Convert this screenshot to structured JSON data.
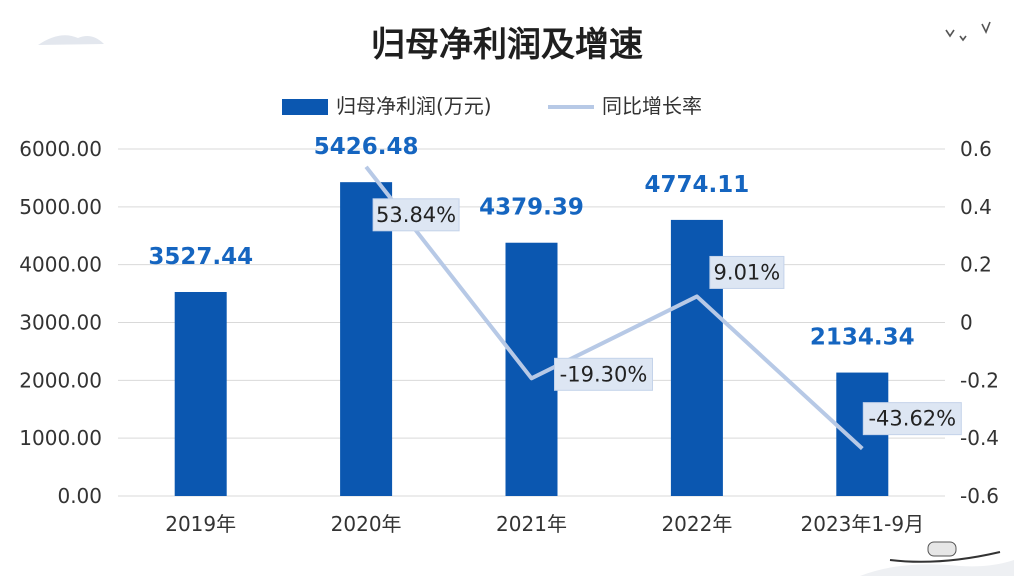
{
  "chart_data": {
    "type": "bar",
    "title": "归母净利润及增速",
    "categories": [
      "2019年",
      "2020年",
      "2021年",
      "2022年",
      "2023年1-9月"
    ],
    "series": [
      {
        "name": "归母净利润(万元)",
        "type": "bar",
        "axis": "left",
        "color": "#0b57b0",
        "values": [
          3527.44,
          5426.48,
          4379.39,
          4774.11,
          2134.34
        ],
        "labels": [
          "3527.44",
          "5426.48",
          "4379.39",
          "4774.11",
          "2134.34"
        ]
      },
      {
        "name": "同比增长率",
        "type": "line",
        "axis": "right",
        "color": "#b7c9e6",
        "values": [
          null,
          0.5384,
          -0.193,
          0.0901,
          -0.4362
        ],
        "labels": [
          "",
          "53.84%",
          "-19.30%",
          "9.01%",
          "-43.62%"
        ]
      }
    ],
    "y_left": {
      "range": [
        0,
        6000
      ],
      "ticks": [
        "0.00",
        "1000.00",
        "2000.00",
        "3000.00",
        "4000.00",
        "5000.00",
        "6000.00"
      ]
    },
    "y_right": {
      "range": [
        -0.6,
        0.6
      ],
      "ticks": [
        "-0.6",
        "-0.4",
        "-0.2",
        "0",
        "0.2",
        "0.4",
        "0.6"
      ]
    },
    "grid": true,
    "legend_position": "top"
  }
}
